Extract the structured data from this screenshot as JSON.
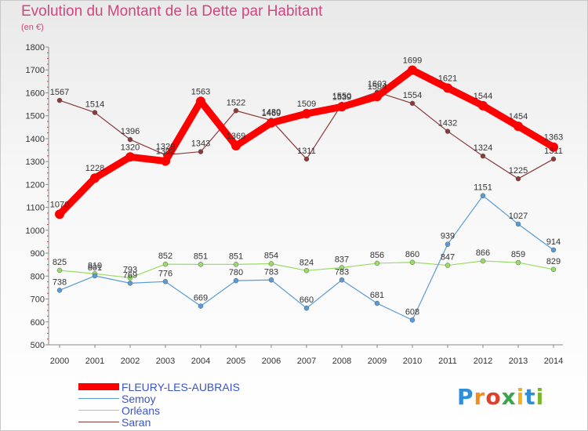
{
  "title": "Evolution du Montant de la Dette par Habitant",
  "subtitle": "(en €)",
  "logo_text": "Proxiti",
  "chart_data": {
    "type": "line",
    "title": "Evolution du Montant de la Dette par Habitant",
    "subtitle": "(en €)",
    "xlabel": "",
    "ylabel": "",
    "ylim": [
      500,
      1800
    ],
    "yticks": [
      500,
      600,
      700,
      800,
      900,
      1000,
      1100,
      1200,
      1300,
      1400,
      1500,
      1600,
      1700,
      1800
    ],
    "categories": [
      "2000",
      "2001",
      "2002",
      "2003",
      "2004",
      "2005",
      "2006",
      "2007",
      "2008",
      "2009",
      "2010",
      "2011",
      "2012",
      "2013",
      "2014"
    ],
    "grid": false,
    "legend_position": "bottom-left",
    "series": [
      {
        "name": "FLEURY-LES-AUBRAIS",
        "color": "#ff0000",
        "values": [
          1070,
          1228,
          1320,
          1302,
          1563,
          1369,
          1469,
          1509,
          1539,
          1584,
          1699,
          1621,
          1544,
          1454,
          1363
        ]
      },
      {
        "name": "Semoy",
        "color": "#5b9bd5",
        "values": [
          738,
          801,
          769,
          776,
          669,
          780,
          783,
          660,
          783,
          681,
          608,
          939,
          1151,
          1027,
          914
        ]
      },
      {
        "name": "Orléans",
        "color": "#99dd66",
        "values": [
          825,
          810,
          793,
          852,
          851,
          851,
          854,
          824,
          837,
          856,
          860,
          847,
          866,
          859,
          829
        ]
      },
      {
        "name": "Saran",
        "color": "#8b3a3a",
        "values": [
          1567,
          1514,
          1396,
          1329,
          1343,
          1522,
          1480,
          1311,
          1550,
          1603,
          1554,
          1432,
          1324,
          1225,
          1311
        ]
      }
    ]
  }
}
